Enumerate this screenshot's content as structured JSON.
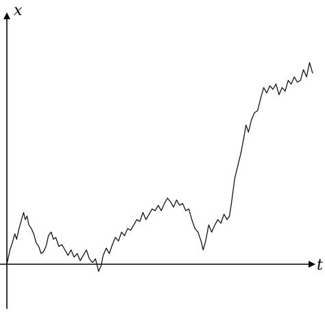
{
  "chart_data": {
    "type": "line",
    "title": "",
    "xlabel": "t",
    "ylabel": "x",
    "grid": false,
    "legend": "none",
    "xlim": [
      0,
      1
    ],
    "ylim": [
      -0.17,
      1.25
    ],
    "series": [
      {
        "values_xy": [
          [
            0.0,
            0.0
          ],
          [
            0.01,
            0.08
          ],
          [
            0.018,
            0.12
          ],
          [
            0.026,
            0.17
          ],
          [
            0.032,
            0.14
          ],
          [
            0.04,
            0.2
          ],
          [
            0.048,
            0.25
          ],
          [
            0.055,
            0.29
          ],
          [
            0.06,
            0.25
          ],
          [
            0.066,
            0.27
          ],
          [
            0.072,
            0.22
          ],
          [
            0.08,
            0.2
          ],
          [
            0.088,
            0.17
          ],
          [
            0.096,
            0.12
          ],
          [
            0.104,
            0.1
          ],
          [
            0.112,
            0.06
          ],
          [
            0.12,
            0.07
          ],
          [
            0.128,
            0.1
          ],
          [
            0.136,
            0.16
          ],
          [
            0.145,
            0.18
          ],
          [
            0.152,
            0.14
          ],
          [
            0.16,
            0.15
          ],
          [
            0.17,
            0.1
          ],
          [
            0.18,
            0.11
          ],
          [
            0.19,
            0.08
          ],
          [
            0.2,
            0.05
          ],
          [
            0.21,
            0.08
          ],
          [
            0.22,
            0.04
          ],
          [
            0.23,
            0.06
          ],
          [
            0.24,
            0.02
          ],
          [
            0.25,
            0.05
          ],
          [
            0.26,
            0.08
          ],
          [
            0.27,
            0.03
          ],
          [
            0.28,
            0.01
          ],
          [
            0.29,
            0.03
          ],
          [
            0.3,
            -0.04
          ],
          [
            0.308,
            -0.01
          ],
          [
            0.315,
            0.05
          ],
          [
            0.325,
            0.09
          ],
          [
            0.335,
            0.06
          ],
          [
            0.345,
            0.11
          ],
          [
            0.355,
            0.15
          ],
          [
            0.365,
            0.13
          ],
          [
            0.375,
            0.18
          ],
          [
            0.385,
            0.16
          ],
          [
            0.395,
            0.2
          ],
          [
            0.405,
            0.19
          ],
          [
            0.415,
            0.22
          ],
          [
            0.425,
            0.25
          ],
          [
            0.435,
            0.24
          ],
          [
            0.445,
            0.29
          ],
          [
            0.455,
            0.25
          ],
          [
            0.465,
            0.28
          ],
          [
            0.475,
            0.31
          ],
          [
            0.485,
            0.3
          ],
          [
            0.495,
            0.33
          ],
          [
            0.505,
            0.3
          ],
          [
            0.515,
            0.34
          ],
          [
            0.525,
            0.37
          ],
          [
            0.535,
            0.35
          ],
          [
            0.545,
            0.32
          ],
          [
            0.555,
            0.36
          ],
          [
            0.565,
            0.33
          ],
          [
            0.575,
            0.34
          ],
          [
            0.585,
            0.3
          ],
          [
            0.595,
            0.31
          ],
          [
            0.605,
            0.25
          ],
          [
            0.615,
            0.2
          ],
          [
            0.625,
            0.18
          ],
          [
            0.635,
            0.13
          ],
          [
            0.642,
            0.08
          ],
          [
            0.65,
            0.13
          ],
          [
            0.66,
            0.22
          ],
          [
            0.67,
            0.18
          ],
          [
            0.68,
            0.22
          ],
          [
            0.69,
            0.25
          ],
          [
            0.7,
            0.23
          ],
          [
            0.71,
            0.28
          ],
          [
            0.72,
            0.25
          ],
          [
            0.728,
            0.27
          ],
          [
            0.735,
            0.35
          ],
          [
            0.745,
            0.48
          ],
          [
            0.755,
            0.55
          ],
          [
            0.765,
            0.62
          ],
          [
            0.775,
            0.71
          ],
          [
            0.782,
            0.78
          ],
          [
            0.79,
            0.74
          ],
          [
            0.8,
            0.81
          ],
          [
            0.81,
            0.85
          ],
          [
            0.82,
            0.86
          ],
          [
            0.83,
            0.93
          ],
          [
            0.84,
            0.99
          ],
          [
            0.85,
            0.96
          ],
          [
            0.86,
            1.0
          ],
          [
            0.87,
            0.98
          ],
          [
            0.88,
            1.01
          ],
          [
            0.89,
            0.95
          ],
          [
            0.9,
            0.99
          ],
          [
            0.91,
            0.97
          ],
          [
            0.92,
            1.03
          ],
          [
            0.93,
            1.01
          ],
          [
            0.94,
            1.05
          ],
          [
            0.95,
            1.02
          ],
          [
            0.96,
            1.03
          ],
          [
            0.97,
            1.09
          ],
          [
            0.98,
            1.05
          ],
          [
            0.99,
            1.13
          ],
          [
            1.0,
            1.07
          ]
        ]
      }
    ]
  }
}
